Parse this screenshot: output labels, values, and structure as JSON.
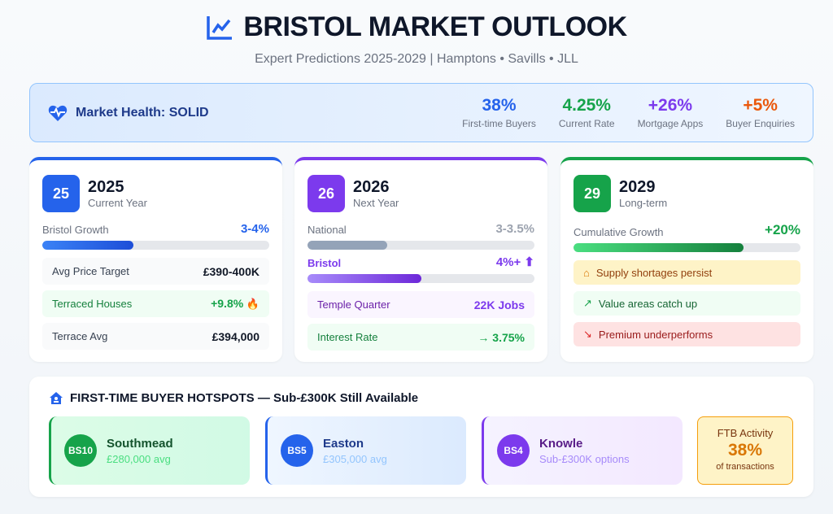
{
  "header": {
    "title": "BRISTOL MARKET OUTLOOK",
    "subtitle": "Expert Predictions 2025-2029 | Hamptons • Savills • JLL",
    "icon": "chart-line-icon"
  },
  "health": {
    "label": "Market Health: SOLID",
    "icon": "heartbeat-icon",
    "stats": [
      {
        "value": "38%",
        "label": "First-time Buyers",
        "color": "#2563eb"
      },
      {
        "value": "4.25%",
        "label": "Current Rate",
        "color": "#16a34a"
      },
      {
        "value": "+26%",
        "label": "Mortgage Apps",
        "color": "#7c3aed"
      },
      {
        "value": "+5%",
        "label": "Buyer Enquiries",
        "color": "#ea580c"
      }
    ]
  },
  "cards": [
    {
      "badge": "25",
      "year": "2025",
      "sub": "Current Year",
      "color": "#2563eb",
      "growth_label": "Bristol Growth",
      "growth_value": "3-4%",
      "growth_fill_pct": 40,
      "items": [
        {
          "label": "Avg Price Target",
          "value": "£390-400K"
        },
        {
          "label": "Terraced Houses",
          "value": "+9.8%",
          "icon": "fire-icon"
        },
        {
          "label": "Terrace Avg",
          "value": "£394,000"
        }
      ]
    },
    {
      "badge": "26",
      "year": "2026",
      "sub": "Next Year",
      "color": "#7c3aed",
      "national_label": "National",
      "national_value": "3-3.5%",
      "national_fill_pct": 35,
      "bristol_label": "Bristol",
      "bristol_value": "4%+ ⬆",
      "bristol_fill_pct": 50,
      "items": [
        {
          "label": "Temple Quarter",
          "value": "22K Jobs"
        },
        {
          "label": "Interest Rate",
          "value": "→ 3.75%"
        }
      ]
    },
    {
      "badge": "29",
      "year": "2029",
      "sub": "Long-term",
      "color": "#16a34a",
      "growth_label": "Cumulative Growth",
      "growth_value": "+20%",
      "growth_fill_pct": 75,
      "items": [
        {
          "label": "Supply shortages persist",
          "icon": "home-icon"
        },
        {
          "label": "Value areas catch up",
          "icon": "trend-up-icon"
        },
        {
          "label": "Premium underperforms",
          "icon": "trend-down-icon"
        }
      ]
    }
  ],
  "hotspots": {
    "title": "FIRST-TIME BUYER HOTSPOTS — Sub-£300K Still Available",
    "items": [
      {
        "code": "BS10",
        "name": "Southmead",
        "value": "£280,000 avg"
      },
      {
        "code": "BS5",
        "name": "Easton",
        "value": "£305,000 avg"
      },
      {
        "code": "BS4",
        "name": "Knowle",
        "value": "Sub-£300K options"
      }
    ],
    "ftb": {
      "label": "FTB Activity",
      "value": "38%",
      "sub": "of transactions"
    }
  }
}
